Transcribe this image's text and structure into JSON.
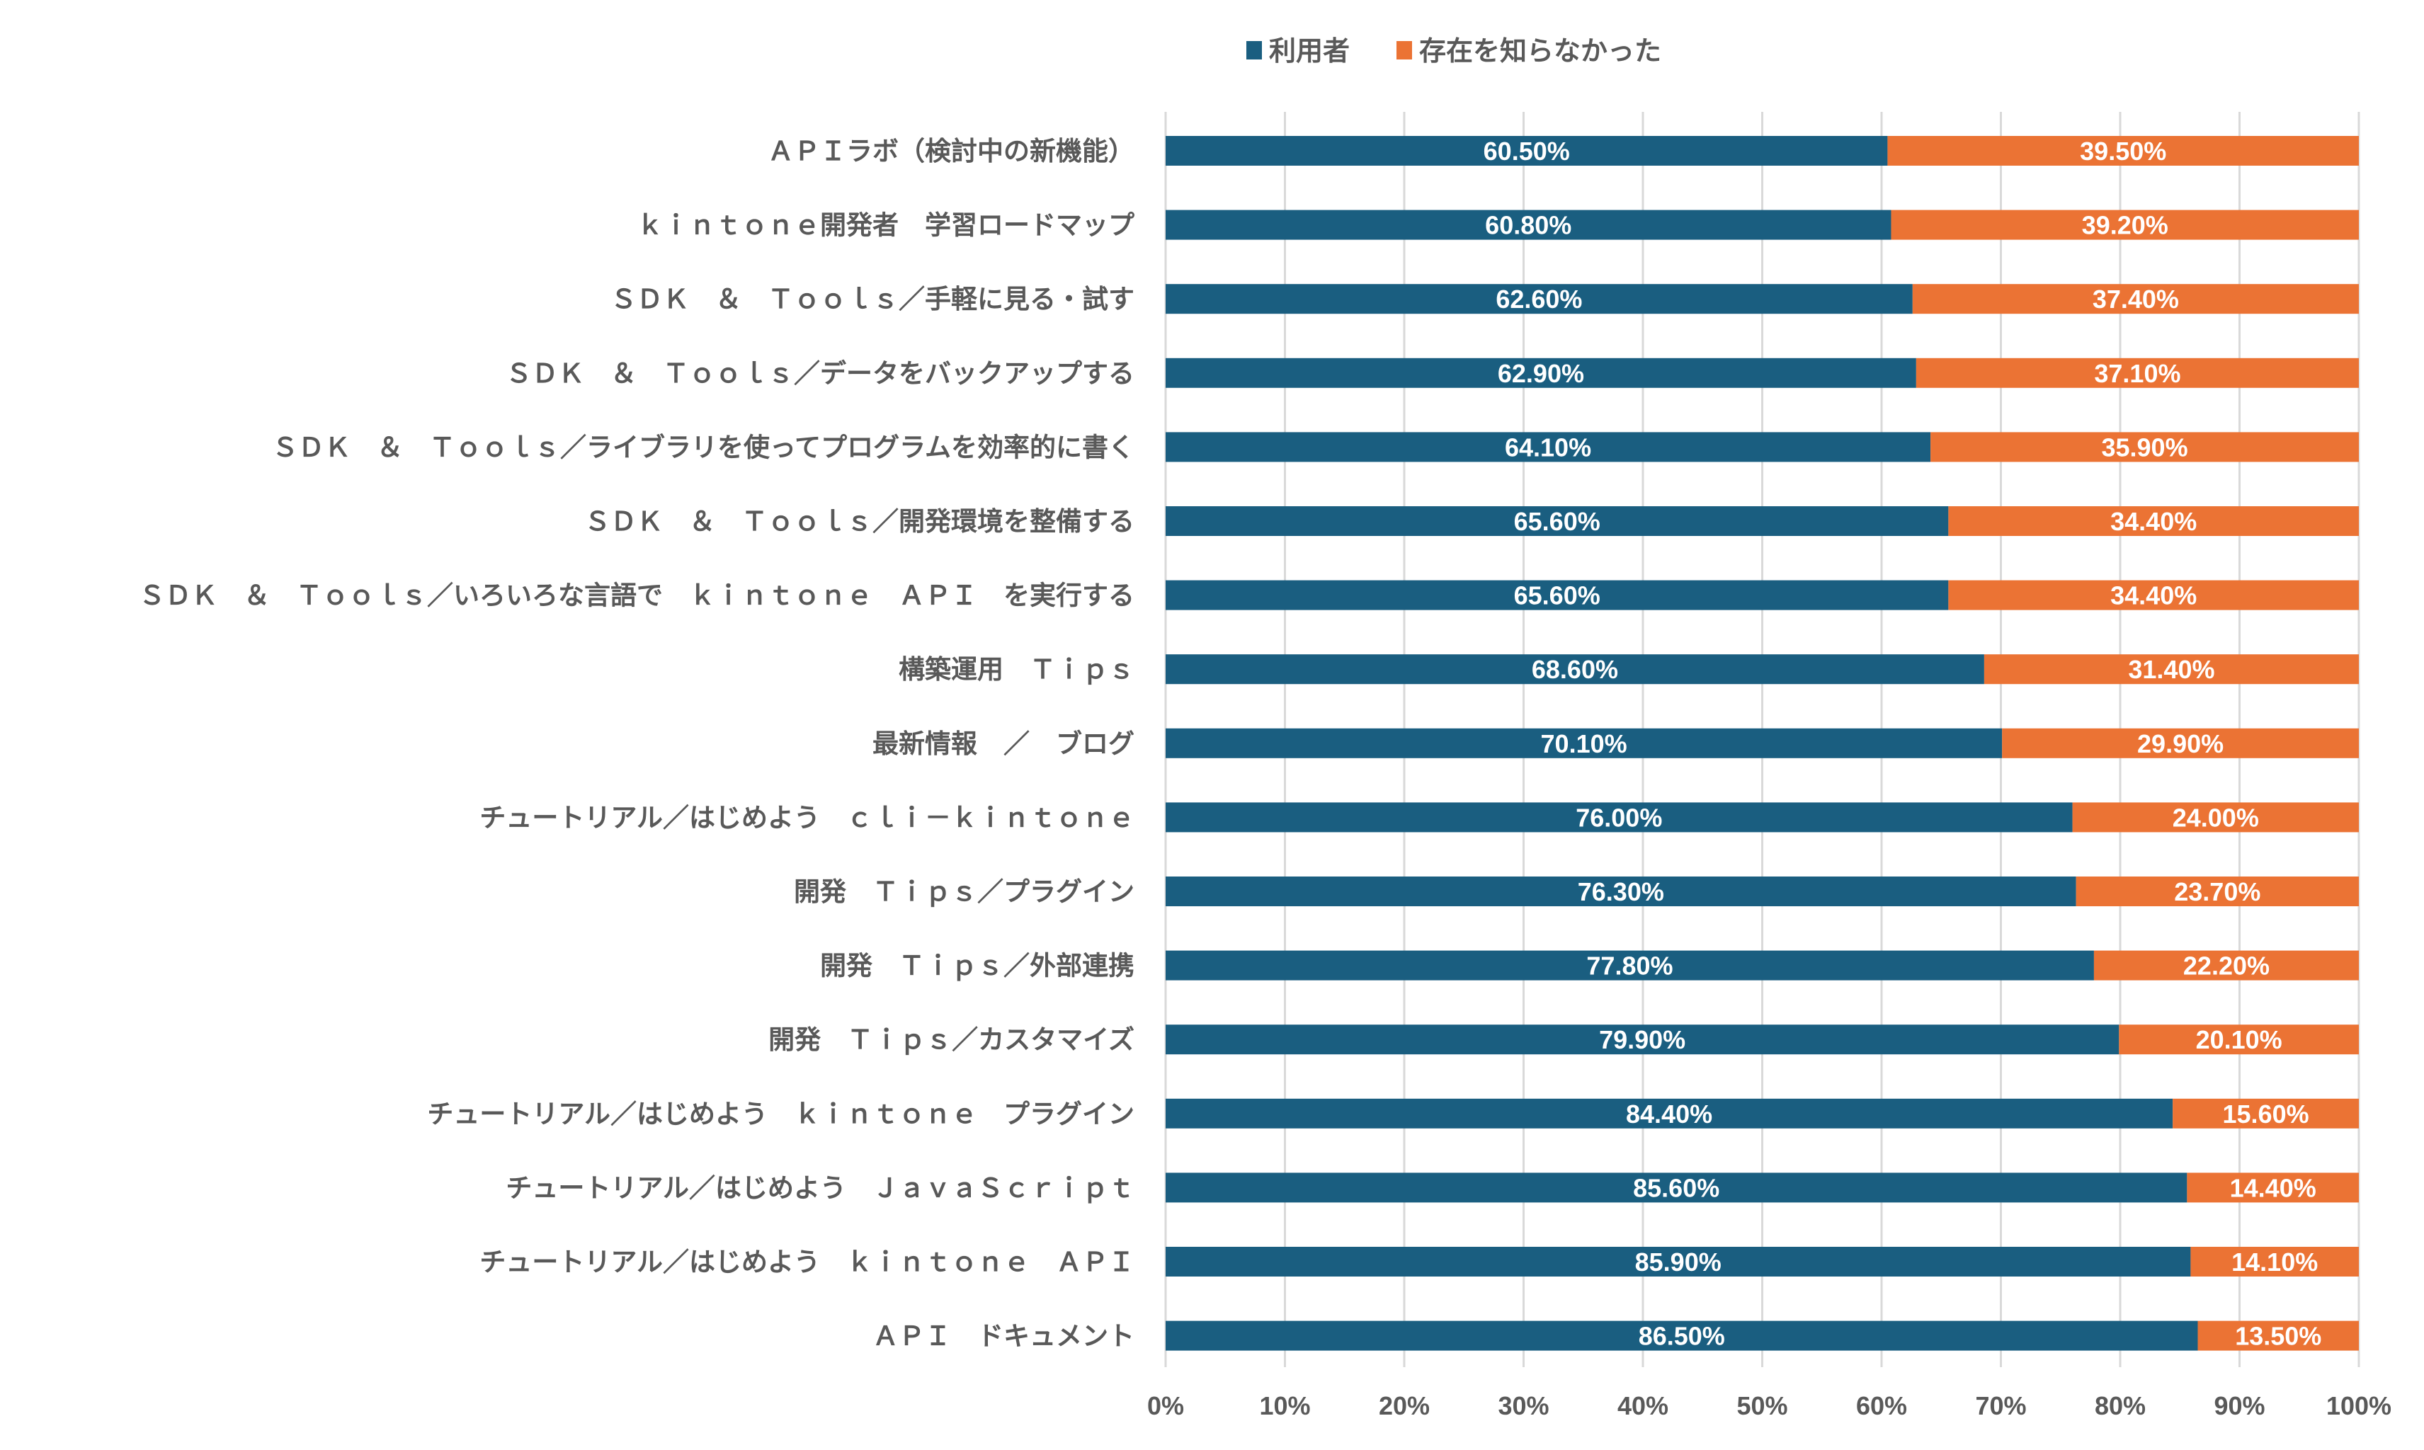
{
  "chart_data": {
    "type": "bar",
    "orientation": "horizontal",
    "stacked": "100%",
    "categories": [
      "ＡＰＩラボ（検討中の新機能）",
      "ｋｉｎｔｏｎｅ開発者　学習ロードマップ",
      "ＳＤＫ　＆　Ｔｏｏｌｓ／手軽に見る・試す",
      "ＳＤＫ　＆　Ｔｏｏｌｓ／データをバックアップする",
      "ＳＤＫ　＆　Ｔｏｏｌｓ／ライブラリを使ってプログラムを効率的に書く",
      "ＳＤＫ　＆　Ｔｏｏｌｓ／開発環境を整備する",
      "ＳＤＫ　＆　Ｔｏｏｌｓ／いろいろな言語で　ｋｉｎｔｏｎｅ　ＡＰＩ　を実行する",
      "構築運用　Ｔｉｐｓ",
      "最新情報　／　ブログ",
      "チュートリアル／はじめよう　ｃｌｉ－ｋｉｎｔｏｎｅ",
      "開発　Ｔｉｐｓ／プラグイン",
      "開発　Ｔｉｐｓ／外部連携",
      "開発　Ｔｉｐｓ／カスタマイズ",
      "チュートリアル／はじめよう　ｋｉｎｔｏｎｅ　プラグイン",
      "チュートリアル／はじめよう　ＪａｖａＳｃｒｉｐｔ",
      "チュートリアル／はじめよう　ｋｉｎｔｏｎｅ　ＡＰＩ",
      "ＡＰＩ　ドキュメント"
    ],
    "series": [
      {
        "name": "利用者",
        "color": "#1A5E80",
        "values": [
          60.5,
          60.8,
          62.6,
          62.9,
          64.1,
          65.6,
          65.6,
          68.6,
          70.1,
          76.0,
          76.3,
          77.8,
          79.9,
          84.4,
          85.6,
          85.9,
          86.5
        ],
        "labels": [
          "60.50%",
          "60.80%",
          "62.60%",
          "62.90%",
          "64.10%",
          "65.60%",
          "65.60%",
          "68.60%",
          "70.10%",
          "76.00%",
          "76.30%",
          "77.80%",
          "79.90%",
          "84.40%",
          "85.60%",
          "85.90%",
          "86.50%"
        ]
      },
      {
        "name": "存在を知らなかった",
        "color": "#EB7334",
        "values": [
          39.5,
          39.2,
          37.4,
          37.1,
          35.9,
          34.4,
          34.4,
          31.4,
          29.9,
          24.0,
          23.7,
          22.2,
          20.1,
          15.6,
          14.4,
          14.1,
          13.5
        ],
        "labels": [
          "39.50%",
          "39.20%",
          "37.40%",
          "37.10%",
          "35.90%",
          "34.40%",
          "34.40%",
          "31.40%",
          "29.90%",
          "24.00%",
          "23.70%",
          "22.20%",
          "20.10%",
          "15.60%",
          "14.40%",
          "14.10%",
          "13.50%"
        ]
      }
    ],
    "xlim": [
      0,
      100
    ],
    "xticks": [
      "0%",
      "10%",
      "20%",
      "30%",
      "40%",
      "50%",
      "60%",
      "70%",
      "80%",
      "90%",
      "100%"
    ],
    "grid": true,
    "legend_position": "top",
    "title": "",
    "xlabel": "",
    "ylabel": ""
  }
}
